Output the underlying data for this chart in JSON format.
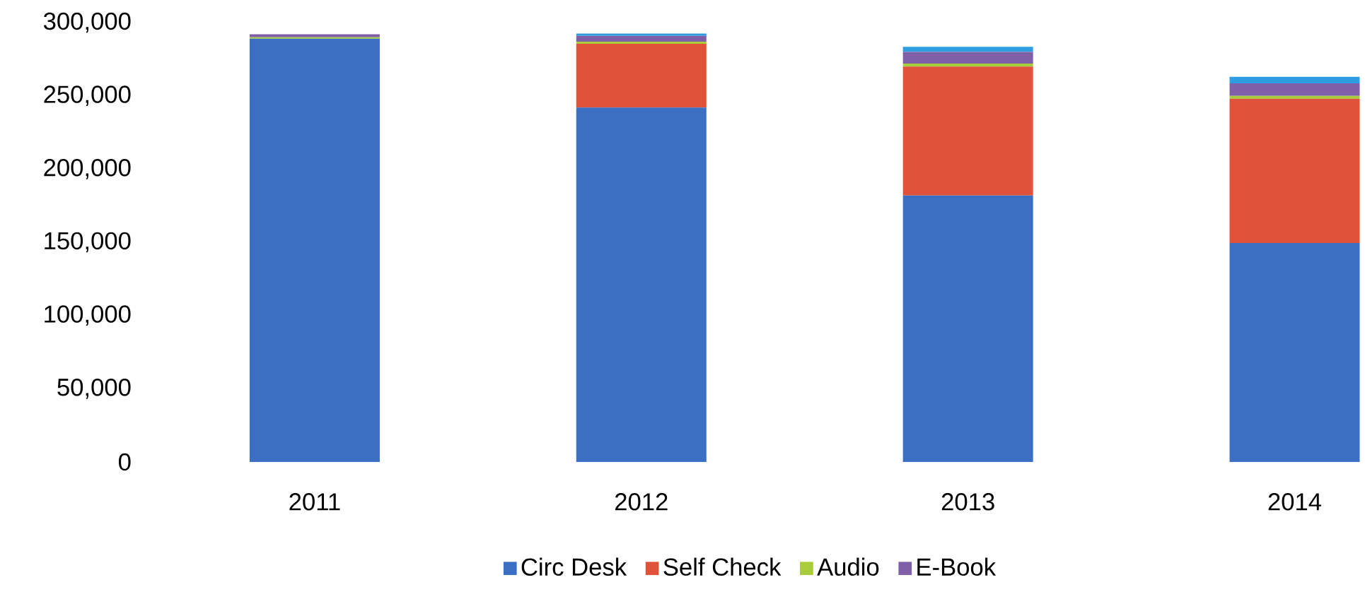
{
  "chart_data": {
    "type": "bar",
    "stacked": true,
    "categories": [
      "2011",
      "2012",
      "2013",
      "2014"
    ],
    "series": [
      {
        "name": "Circ Desk",
        "color": "#3a6fc4",
        "values": [
          289000,
          242000,
          182000,
          149500
        ]
      },
      {
        "name": "Self Check",
        "color": "#e0533a",
        "values": [
          0,
          43500,
          88000,
          98500
        ]
      },
      {
        "name": "Audio",
        "color": "#a8cc3a",
        "values": [
          1000,
          1500,
          2000,
          2000
        ]
      },
      {
        "name": "E-Book",
        "color": "#7f60a8",
        "values": [
          2000,
          4000,
          8000,
          8500
        ]
      },
      {
        "color": "#2e9ee0",
        "values": [
          0,
          1500,
          3500,
          4500
        ]
      }
    ],
    "ylim": [
      0,
      300000
    ],
    "yticks": [
      {
        "value": 0,
        "label": "0"
      },
      {
        "value": 50000,
        "label": "50,000"
      },
      {
        "value": 100000,
        "label": "100,000"
      },
      {
        "value": 150000,
        "label": "150,000"
      },
      {
        "value": 200000,
        "label": "200,000"
      },
      {
        "value": 250000,
        "label": "250,000"
      },
      {
        "value": 300000,
        "label": "300,000"
      }
    ],
    "legend": "bottom"
  }
}
